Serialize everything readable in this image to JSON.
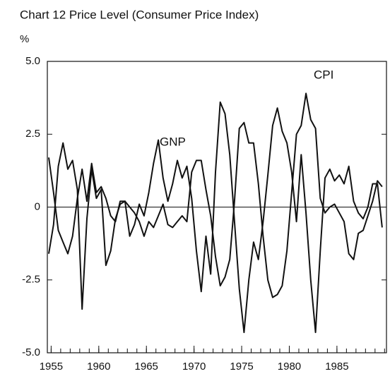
{
  "chart_data": {
    "type": "line",
    "title": "Chart 12  Price Level (Consumer Price Index)",
    "y_label": "%",
    "xlim": [
      1954.6,
      1990.2
    ],
    "xticks": [
      1955,
      1960,
      1965,
      1970,
      1975,
      1980,
      1985
    ],
    "ylim": [
      -5,
      5
    ],
    "yticks": [
      {
        "value": 5,
        "label": "5.0"
      },
      2.5,
      0,
      -2.5,
      {
        "value": -5,
        "label": "-5.0"
      }
    ],
    "zero_line": true,
    "x": [
      1954.75,
      1955.25,
      1955.75,
      1956.25,
      1956.75,
      1957.25,
      1957.75,
      1958.25,
      1958.75,
      1959.25,
      1959.75,
      1960.25,
      1960.75,
      1961.25,
      1961.75,
      1962.25,
      1962.75,
      1963.25,
      1963.75,
      1964.25,
      1964.75,
      1965.25,
      1965.75,
      1966.25,
      1966.75,
      1967.25,
      1967.75,
      1968.25,
      1968.75,
      1969.25,
      1969.75,
      1970.25,
      1970.75,
      1971.25,
      1971.75,
      1972.25,
      1972.75,
      1973.25,
      1973.75,
      1974.25,
      1974.75,
      1975.25,
      1975.75,
      1976.25,
      1976.75,
      1977.25,
      1977.75,
      1978.25,
      1978.75,
      1979.25,
      1979.75,
      1980.25,
      1980.75,
      1981.25,
      1981.75,
      1982.25,
      1982.75,
      1983.25,
      1983.75,
      1984.25,
      1984.75,
      1985.25,
      1985.75,
      1986.25,
      1986.75,
      1987.25,
      1987.75,
      1988.25,
      1988.75,
      1989.25,
      1989.75
    ],
    "series": [
      {
        "name": "GNP",
        "color": "#111111",
        "values": [
          -1.6,
          -0.6,
          1.4,
          2.2,
          1.3,
          1.6,
          0.6,
          -3.5,
          -0.4,
          1.3,
          0.3,
          0.6,
          -2.0,
          -1.5,
          -0.4,
          0.1,
          0.2,
          -1.0,
          -0.6,
          0.1,
          -0.3,
          0.5,
          1.5,
          2.3,
          1.0,
          0.2,
          0.8,
          1.6,
          1.0,
          1.4,
          0.3,
          -1.5,
          -2.9,
          -1.0,
          -2.3,
          1.2,
          3.6,
          3.2,
          1.8,
          -0.5,
          -2.8,
          -4.3,
          -2.5,
          -1.2,
          -1.8,
          -0.5,
          1.1,
          2.8,
          3.4,
          2.6,
          2.2,
          1.2,
          -0.5,
          1.8,
          -0.2,
          -2.5,
          -4.3,
          -1.5,
          1.0,
          1.3,
          0.9,
          1.1,
          0.8,
          1.4,
          0.2,
          -0.2,
          -0.4,
          0.0,
          0.8,
          0.8,
          -0.7
        ]
      },
      {
        "name": "CPI",
        "color": "#111111",
        "values": [
          1.7,
          0.5,
          -0.8,
          -1.2,
          -1.6,
          -1.0,
          0.3,
          1.3,
          0.2,
          1.5,
          0.5,
          0.7,
          0.3,
          -0.3,
          -0.5,
          0.2,
          0.2,
          0.0,
          -0.2,
          -0.5,
          -1.0,
          -0.5,
          -0.7,
          -0.3,
          0.1,
          -0.6,
          -0.7,
          -0.5,
          -0.3,
          -0.5,
          1.2,
          1.6,
          1.6,
          0.6,
          -0.3,
          -1.7,
          -2.7,
          -2.4,
          -1.8,
          0.2,
          2.7,
          2.9,
          2.2,
          2.2,
          0.8,
          -1.0,
          -2.5,
          -3.1,
          -3.0,
          -2.7,
          -1.5,
          0.5,
          2.5,
          2.8,
          3.9,
          3.0,
          2.7,
          0.3,
          -0.2,
          0.0,
          0.1,
          -0.2,
          -0.5,
          -1.6,
          -1.8,
          -0.9,
          -0.8,
          -0.3,
          0.2,
          0.9,
          0.7
        ]
      }
    ]
  }
}
